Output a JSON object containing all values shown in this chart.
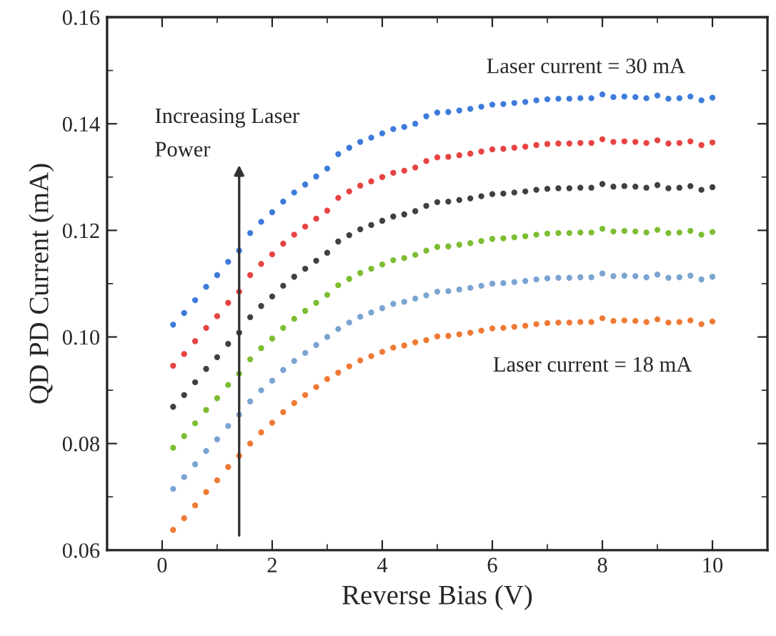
{
  "chart_data": {
    "type": "scatter",
    "xlabel": "Reverse Bias (V)",
    "ylabel": "QD PD Current (mA)",
    "x": [
      0.2,
      0.4,
      0.6,
      0.8,
      1.0,
      1.2,
      1.4,
      1.6,
      1.8,
      2.0,
      2.2,
      2.4,
      2.6,
      2.8,
      3.0,
      3.2,
      3.4,
      3.6,
      3.8,
      4.0,
      4.2,
      4.4,
      4.6,
      4.8,
      5.0,
      5.2,
      5.4,
      5.6,
      5.8,
      6.0,
      6.2,
      6.4,
      6.6,
      6.8,
      7.0,
      7.2,
      7.4,
      7.6,
      7.8,
      8.0,
      8.2,
      8.4,
      8.6,
      8.8,
      9.0,
      9.2,
      9.4,
      9.6,
      9.8,
      10.0
    ],
    "series": [
      {
        "color": "#f07a35",
        "values": [
          0.0638,
          0.066,
          0.0684,
          0.0709,
          0.0731,
          0.0756,
          0.0777,
          0.08,
          0.0821,
          0.0839,
          0.0859,
          0.0876,
          0.0891,
          0.0906,
          0.0921,
          0.0933,
          0.0945,
          0.0956,
          0.0964,
          0.0972,
          0.098,
          0.0984,
          0.099,
          0.0994,
          0.1001,
          0.1002,
          0.1005,
          0.1008,
          0.1012,
          0.1016,
          0.1017,
          0.1019,
          0.1021,
          0.1024,
          0.1026,
          0.1027,
          0.1027,
          0.1028,
          0.1028,
          0.1035,
          0.103,
          0.1031,
          0.103,
          0.1028,
          0.1033,
          0.1027,
          0.1028,
          0.1031,
          0.1024,
          0.1029
        ]
      },
      {
        "color": "#7ca4d2",
        "values": [
          0.0715,
          0.0737,
          0.0761,
          0.0786,
          0.0808,
          0.0833,
          0.0854,
          0.0879,
          0.09,
          0.0918,
          0.0938,
          0.0955,
          0.097,
          0.0985,
          0.1,
          0.1015,
          0.1027,
          0.1038,
          0.1046,
          0.1054,
          0.1062,
          0.1066,
          0.1072,
          0.1078,
          0.1085,
          0.1086,
          0.1089,
          0.1092,
          0.1096,
          0.11,
          0.1101,
          0.1103,
          0.1105,
          0.1108,
          0.111,
          0.1111,
          0.1111,
          0.1112,
          0.1112,
          0.1119,
          0.1114,
          0.1115,
          0.1114,
          0.1112,
          0.1117,
          0.1111,
          0.1112,
          0.1115,
          0.1108,
          0.1113
        ]
      },
      {
        "color": "#7dbd32",
        "values": [
          0.0792,
          0.0814,
          0.0838,
          0.0863,
          0.0885,
          0.091,
          0.0931,
          0.0958,
          0.0979,
          0.0997,
          0.1017,
          0.1034,
          0.1049,
          0.1064,
          0.1079,
          0.1097,
          0.1109,
          0.112,
          0.1128,
          0.1136,
          0.1144,
          0.1148,
          0.1154,
          0.1162,
          0.1169,
          0.117,
          0.1173,
          0.1176,
          0.118,
          0.1184,
          0.1185,
          0.1187,
          0.1189,
          0.1192,
          0.1194,
          0.1195,
          0.1195,
          0.1196,
          0.1196,
          0.1203,
          0.1198,
          0.1199,
          0.1198,
          0.1196,
          0.1201,
          0.1195,
          0.1196,
          0.1199,
          0.1192,
          0.1197
        ]
      },
      {
        "color": "#404040",
        "values": [
          0.0869,
          0.0891,
          0.0915,
          0.094,
          0.0962,
          0.0987,
          0.1008,
          0.1037,
          0.1058,
          0.1076,
          0.1096,
          0.1113,
          0.1128,
          0.1143,
          0.1158,
          0.1179,
          0.1191,
          0.1202,
          0.121,
          0.1218,
          0.1226,
          0.123,
          0.1236,
          0.1246,
          0.1253,
          0.1254,
          0.1257,
          0.126,
          0.1264,
          0.1268,
          0.1269,
          0.1271,
          0.1273,
          0.1276,
          0.1278,
          0.1279,
          0.1279,
          0.128,
          0.128,
          0.1287,
          0.1282,
          0.1283,
          0.1282,
          0.128,
          0.1285,
          0.1279,
          0.128,
          0.1283,
          0.1276,
          0.1281
        ]
      },
      {
        "color": "#e84343",
        "values": [
          0.0946,
          0.0968,
          0.0992,
          0.1017,
          0.1039,
          0.1064,
          0.1085,
          0.1116,
          0.1137,
          0.1155,
          0.1175,
          0.1192,
          0.1207,
          0.1222,
          0.1237,
          0.1261,
          0.1273,
          0.1284,
          0.1292,
          0.13,
          0.1308,
          0.1312,
          0.1318,
          0.133,
          0.1337,
          0.1338,
          0.1341,
          0.1344,
          0.1348,
          0.1352,
          0.1353,
          0.1355,
          0.1357,
          0.136,
          0.1362,
          0.1363,
          0.1363,
          0.1364,
          0.1364,
          0.1371,
          0.1366,
          0.1367,
          0.1366,
          0.1364,
          0.1369,
          0.1363,
          0.1364,
          0.1367,
          0.136,
          0.1365
        ]
      },
      {
        "color": "#3d7bdb",
        "values": [
          0.1023,
          0.1045,
          0.1069,
          0.1094,
          0.1116,
          0.1141,
          0.1162,
          0.1195,
          0.1216,
          0.1234,
          0.1254,
          0.1271,
          0.1286,
          0.1301,
          0.1316,
          0.1343,
          0.1355,
          0.1366,
          0.1374,
          0.1382,
          0.139,
          0.1394,
          0.14,
          0.1414,
          0.1421,
          0.1422,
          0.1425,
          0.1428,
          0.1432,
          0.1436,
          0.1437,
          0.1439,
          0.1441,
          0.1444,
          0.1446,
          0.1447,
          0.1447,
          0.1448,
          0.1448,
          0.1455,
          0.145,
          0.1451,
          0.145,
          0.1448,
          0.1453,
          0.1447,
          0.1448,
          0.1451,
          0.1444,
          0.1449
        ]
      }
    ],
    "annotations": [
      "Laser current = 30 mA",
      "Increasing Laser\nPower",
      "Laser current = 18 mA"
    ],
    "xlim": [
      -1,
      11
    ],
    "xticks": [
      0,
      2,
      4,
      6,
      8,
      10
    ],
    "ylim": [
      0.06,
      0.16
    ],
    "yticks": [
      {
        "value": 0.06,
        "label": "0.06"
      },
      {
        "value": 0.08,
        "label": "0.08"
      },
      {
        "value": 0.1,
        "label": "0.10"
      },
      {
        "value": 0.12,
        "label": "0.12"
      },
      {
        "value": 0.14,
        "label": "0.14"
      },
      {
        "value": 0.16,
        "label": "0.16"
      }
    ],
    "marker": "circle",
    "grid": false,
    "legend": false
  }
}
